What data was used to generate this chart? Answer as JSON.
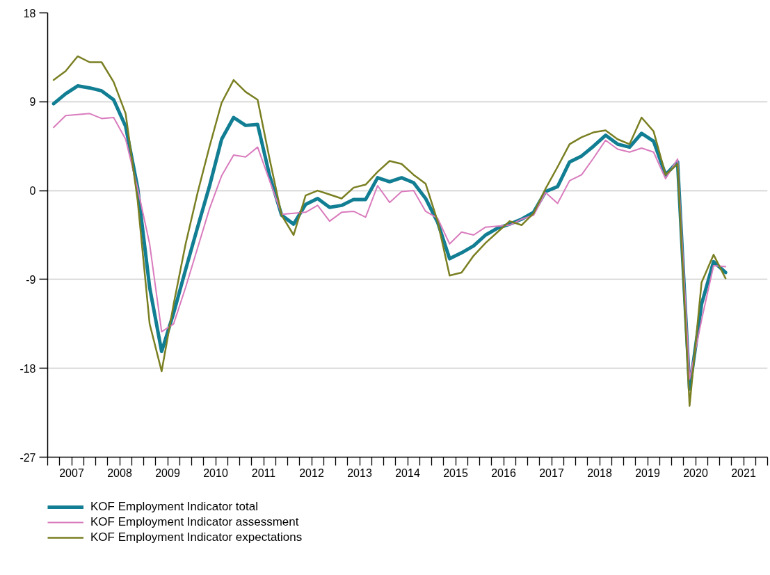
{
  "chart_data": {
    "type": "line",
    "x": [
      2007.125,
      2007.375,
      2007.625,
      2007.875,
      2008.125,
      2008.375,
      2008.625,
      2008.875,
      2009.125,
      2009.375,
      2009.625,
      2009.875,
      2010.125,
      2010.375,
      2010.625,
      2010.875,
      2011.125,
      2011.375,
      2011.625,
      2011.875,
      2012.125,
      2012.375,
      2012.625,
      2012.875,
      2013.125,
      2013.375,
      2013.625,
      2013.875,
      2014.125,
      2014.375,
      2014.625,
      2014.875,
      2015.125,
      2015.375,
      2015.625,
      2015.875,
      2016.125,
      2016.375,
      2016.625,
      2016.875,
      2017.125,
      2017.375,
      2017.625,
      2017.875,
      2018.125,
      2018.375,
      2018.625,
      2018.875,
      2019.125,
      2019.375,
      2019.625,
      2019.875,
      2020.125,
      2020.375,
      2020.625,
      2020.875,
      2021.125
    ],
    "series": [
      {
        "name": "KOF Employment Indicator total",
        "color": "#127e93",
        "values": [
          8.8,
          9.8,
          10.6,
          10.4,
          10.1,
          9.2,
          6.5,
          0.3,
          -9.8,
          -16.3,
          -12.4,
          -8.0,
          -3.7,
          0.5,
          5.2,
          7.4,
          6.6,
          6.7,
          1.5,
          -2.5,
          -3.4,
          -1.4,
          -0.8,
          -1.7,
          -1.5,
          -0.9,
          -0.9,
          1.3,
          0.9,
          1.3,
          0.8,
          -0.8,
          -3.2,
          -6.9,
          -6.3,
          -5.6,
          -4.5,
          -3.8,
          -3.4,
          -2.9,
          -2.2,
          -0.1,
          0.4,
          2.9,
          3.5,
          4.5,
          5.6,
          4.7,
          4.4,
          5.8,
          5.0,
          1.6,
          2.9,
          -20.1,
          -11.5,
          -7.2,
          -8.3
        ]
      },
      {
        "name": "KOF Employment Indicator assessment",
        "color": "#d97bbd",
        "values": [
          6.4,
          7.6,
          7.7,
          7.8,
          7.3,
          7.4,
          5.2,
          0.2,
          -5.4,
          -14.3,
          -13.5,
          -9.8,
          -5.8,
          -1.8,
          1.5,
          3.6,
          3.4,
          4.4,
          1.0,
          -2.4,
          -2.3,
          -2.2,
          -1.5,
          -3.1,
          -2.2,
          -2.1,
          -2.7,
          0.5,
          -1.2,
          -0.1,
          0.0,
          -2.1,
          -2.8,
          -5.4,
          -4.2,
          -4.5,
          -3.7,
          -3.6,
          -3.5,
          -2.9,
          -2.5,
          -0.2,
          -1.3,
          1.0,
          1.6,
          3.3,
          5.1,
          4.2,
          3.9,
          4.3,
          3.9,
          1.2,
          3.2,
          -19.1,
          -13.1,
          -7.6,
          -7.7
        ]
      },
      {
        "name": "KOF Employment Indicator expectations",
        "color": "#7a7f22",
        "values": [
          11.2,
          12.1,
          13.6,
          13.0,
          13.0,
          11.0,
          7.8,
          -1.0,
          -13.5,
          -18.3,
          -11.5,
          -5.4,
          -0.2,
          4.5,
          8.9,
          11.2,
          10.0,
          9.2,
          3.2,
          -2.5,
          -4.5,
          -0.5,
          0.0,
          -0.4,
          -0.8,
          0.3,
          0.6,
          1.9,
          3.0,
          2.7,
          1.6,
          0.7,
          -3.1,
          -8.6,
          -8.3,
          -6.6,
          -5.3,
          -4.2,
          -3.1,
          -3.5,
          -2.3,
          0.2,
          2.4,
          4.7,
          5.4,
          5.9,
          6.1,
          5.2,
          4.7,
          7.4,
          6.0,
          1.6,
          2.7,
          -21.8,
          -9.3,
          -6.5,
          -8.9
        ]
      }
    ],
    "xlim": [
      2007,
      2022
    ],
    "xticks": [
      {
        "value": 2007,
        "label": null
      },
      {
        "value": 2007.25,
        "label": null
      },
      {
        "value": 2007.5,
        "label": "2007"
      },
      {
        "value": 2007.75,
        "label": null
      },
      {
        "value": 2008,
        "label": null
      },
      {
        "value": 2008.25,
        "label": null
      },
      {
        "value": 2008.5,
        "label": "2008"
      },
      {
        "value": 2008.75,
        "label": null
      },
      {
        "value": 2009,
        "label": null
      },
      {
        "value": 2009.25,
        "label": null
      },
      {
        "value": 2009.5,
        "label": "2009"
      },
      {
        "value": 2009.75,
        "label": null
      },
      {
        "value": 2010,
        "label": null
      },
      {
        "value": 2010.25,
        "label": null
      },
      {
        "value": 2010.5,
        "label": "2010"
      },
      {
        "value": 2010.75,
        "label": null
      },
      {
        "value": 2011,
        "label": null
      },
      {
        "value": 2011.25,
        "label": null
      },
      {
        "value": 2011.5,
        "label": "2011"
      },
      {
        "value": 2011.75,
        "label": null
      },
      {
        "value": 2012,
        "label": null
      },
      {
        "value": 2012.25,
        "label": null
      },
      {
        "value": 2012.5,
        "label": "2012"
      },
      {
        "value": 2012.75,
        "label": null
      },
      {
        "value": 2013,
        "label": null
      },
      {
        "value": 2013.25,
        "label": null
      },
      {
        "value": 2013.5,
        "label": "2013"
      },
      {
        "value": 2013.75,
        "label": null
      },
      {
        "value": 2014,
        "label": null
      },
      {
        "value": 2014.25,
        "label": null
      },
      {
        "value": 2014.5,
        "label": "2014"
      },
      {
        "value": 2014.75,
        "label": null
      },
      {
        "value": 2015,
        "label": null
      },
      {
        "value": 2015.25,
        "label": null
      },
      {
        "value": 2015.5,
        "label": "2015"
      },
      {
        "value": 2015.75,
        "label": null
      },
      {
        "value": 2016,
        "label": null
      },
      {
        "value": 2016.25,
        "label": null
      },
      {
        "value": 2016.5,
        "label": "2016"
      },
      {
        "value": 2016.75,
        "label": null
      },
      {
        "value": 2017,
        "label": null
      },
      {
        "value": 2017.25,
        "label": null
      },
      {
        "value": 2017.5,
        "label": "2017"
      },
      {
        "value": 2017.75,
        "label": null
      },
      {
        "value": 2018,
        "label": null
      },
      {
        "value": 2018.25,
        "label": null
      },
      {
        "value": 2018.5,
        "label": "2018"
      },
      {
        "value": 2018.75,
        "label": null
      },
      {
        "value": 2019,
        "label": null
      },
      {
        "value": 2019.25,
        "label": null
      },
      {
        "value": 2019.5,
        "label": "2019"
      },
      {
        "value": 2019.75,
        "label": null
      },
      {
        "value": 2020,
        "label": null
      },
      {
        "value": 2020.25,
        "label": null
      },
      {
        "value": 2020.5,
        "label": "2020"
      },
      {
        "value": 2020.75,
        "label": null
      },
      {
        "value": 2021,
        "label": null
      },
      {
        "value": 2021.25,
        "label": null
      },
      {
        "value": 2021.5,
        "label": "2021"
      },
      {
        "value": 2021.75,
        "label": null
      },
      {
        "value": 2022,
        "label": null
      }
    ],
    "ylim": [
      -27,
      18
    ],
    "yticks": [
      -27,
      -18,
      -9,
      0,
      9,
      18
    ],
    "grid": "y",
    "legend": "bottom left",
    "line_style": "solid",
    "marker": "none"
  }
}
